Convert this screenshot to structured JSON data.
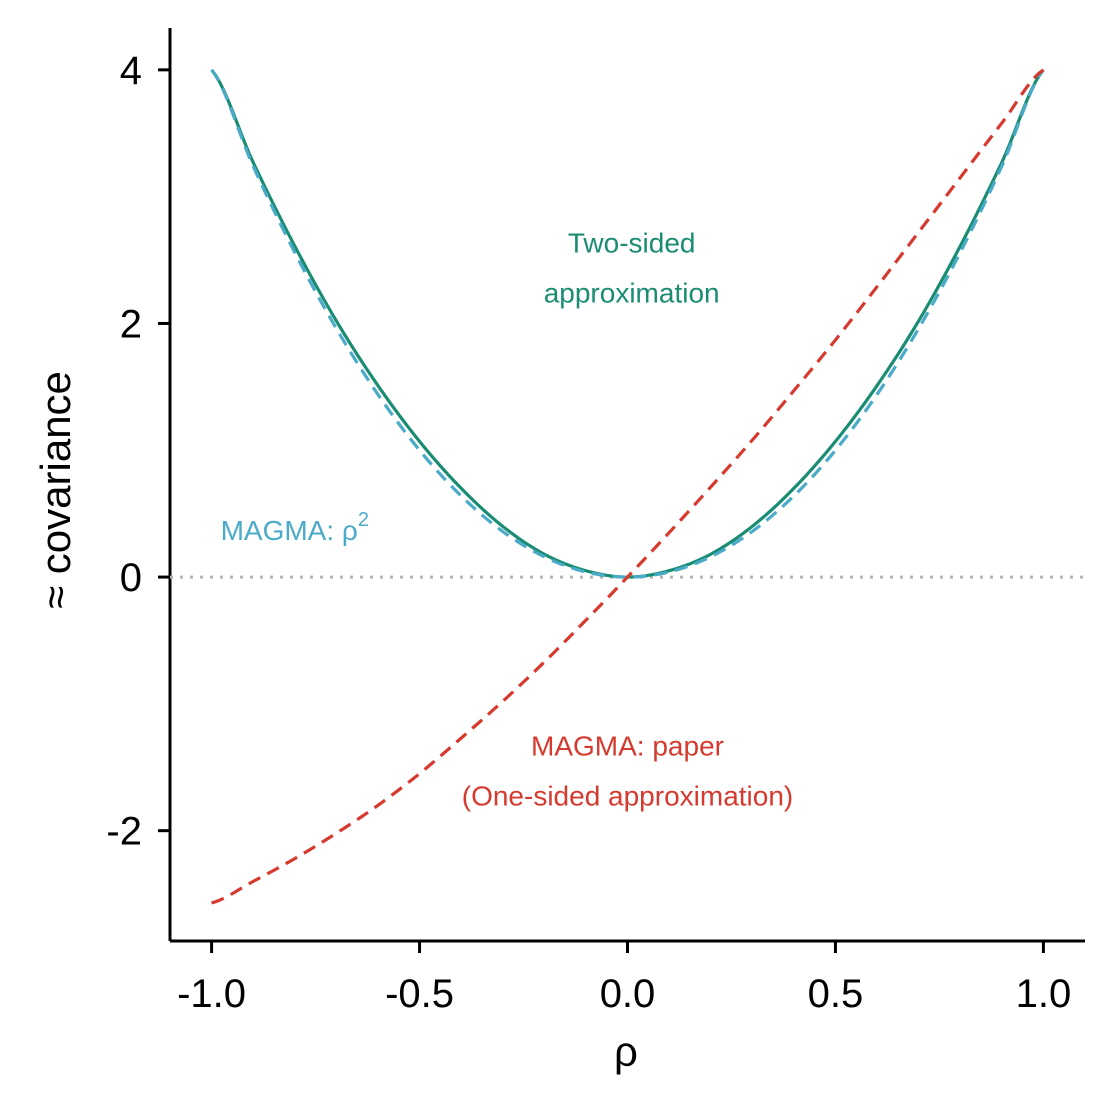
{
  "chart_data": {
    "type": "line",
    "xlabel": "ρ",
    "ylabel": "≈ covariance",
    "xlim": [
      -1.1,
      1.1
    ],
    "ylim": [
      -2.87,
      4.33
    ],
    "x_ticks": [
      -1.0,
      -0.5,
      0.0,
      0.5,
      1.0
    ],
    "x_tick_labels": [
      "-1.0",
      "-0.5",
      "0.0",
      "0.5",
      "1.0"
    ],
    "y_ticks": [
      -2,
      0,
      2,
      4
    ],
    "y_tick_labels": [
      "-2",
      "0",
      "2",
      "4"
    ],
    "grid": false,
    "reference_line": {
      "y": 0,
      "style": "dotted",
      "color": "#b3b3b3"
    },
    "series": [
      {
        "style": "solid",
        "color": "#1a8c73",
        "x": [
          -1.0,
          -0.9,
          -0.8,
          -0.7,
          -0.6,
          -0.5,
          -0.4,
          -0.3,
          -0.2,
          -0.1,
          0.0,
          0.1,
          0.2,
          0.3,
          0.4,
          0.5,
          0.6,
          0.7,
          0.8,
          0.9,
          1.0
        ],
        "y": [
          4.0,
          3.27,
          2.61,
          2.02,
          1.51,
          1.07,
          0.7,
          0.4,
          0.18,
          0.05,
          0.0,
          0.05,
          0.18,
          0.4,
          0.7,
          1.07,
          1.51,
          2.02,
          2.61,
          3.27,
          4.0
        ]
      },
      {
        "style": "dashed",
        "color": "#4aabc8",
        "x": [
          -1.0,
          -0.9,
          -0.8,
          -0.7,
          -0.6,
          -0.5,
          -0.4,
          -0.3,
          -0.2,
          -0.1,
          0.0,
          0.1,
          0.2,
          0.3,
          0.4,
          0.5,
          0.6,
          0.7,
          0.8,
          0.9,
          1.0
        ],
        "y": [
          4.0,
          3.24,
          2.56,
          1.96,
          1.44,
          1.0,
          0.64,
          0.36,
          0.16,
          0.04,
          0.0,
          0.04,
          0.16,
          0.36,
          0.64,
          1.0,
          1.44,
          1.96,
          2.56,
          3.24,
          4.0
        ]
      },
      {
        "style": "dashed",
        "color": "#d63a2f",
        "x": [
          -1.0,
          -0.9,
          -0.8,
          -0.7,
          -0.6,
          -0.5,
          -0.4,
          -0.3,
          -0.2,
          -0.1,
          0.0,
          0.1,
          0.2,
          0.3,
          0.4,
          0.5,
          0.6,
          0.7,
          0.8,
          0.9,
          1.0
        ],
        "y": [
          -2.57,
          -2.4,
          -2.22,
          -2.02,
          -1.8,
          -1.55,
          -1.27,
          -0.98,
          -0.67,
          -0.34,
          0.0,
          0.35,
          0.71,
          1.08,
          1.47,
          1.87,
          2.29,
          2.72,
          3.15,
          3.58,
          4.0
        ]
      }
    ],
    "annotations": [
      {
        "lines": [
          "Two-sided",
          "approximation"
        ],
        "x": 0.01,
        "y_top": 2.64,
        "color": "#1a8c73"
      },
      {
        "lines": [
          "MAGMA: ρ",
          "2"
        ],
        "x": -0.8,
        "y_top": 0.45,
        "color": "#4aabc8",
        "superscript": true
      },
      {
        "lines": [
          "MAGMA: paper",
          "(One-sided approximation)"
        ],
        "x": 0.0,
        "y_top": -1.33,
        "color": "#d63a2f"
      }
    ]
  }
}
